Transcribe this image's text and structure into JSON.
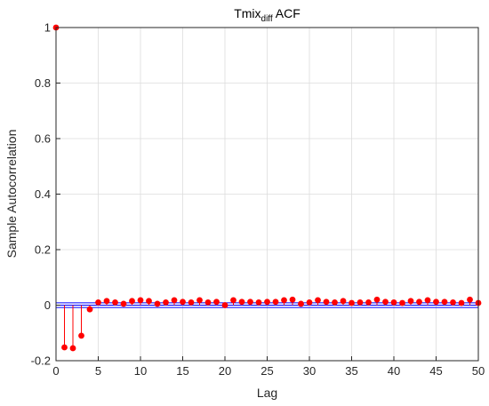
{
  "chart_data": {
    "type": "stem",
    "title": {
      "base": "Tmix",
      "subscript": "diff",
      "suffix": " ACF"
    },
    "xlabel": "Lag",
    "ylabel": "Sample Autocorrelation",
    "xlim": [
      0,
      50
    ],
    "ylim": [
      -0.2,
      1
    ],
    "xticks": [
      "0",
      "5",
      "10",
      "15",
      "20",
      "25",
      "30",
      "35",
      "40",
      "45",
      "50"
    ],
    "yticks": [
      "-0.2",
      "0",
      "0.2",
      "0.4",
      "0.6",
      "0.8",
      "1"
    ],
    "grid": true,
    "confidence_bound": 0.0085,
    "colors": {
      "stem": "#ff0000",
      "bound": "#0000ff",
      "axis": "#262626",
      "grid": "#dcdcdc"
    },
    "lags": [
      0,
      1,
      2,
      3,
      4,
      5,
      6,
      7,
      8,
      9,
      10,
      11,
      12,
      13,
      14,
      15,
      16,
      17,
      18,
      19,
      20,
      21,
      22,
      23,
      24,
      25,
      26,
      27,
      28,
      29,
      30,
      31,
      32,
      33,
      34,
      35,
      36,
      37,
      38,
      39,
      40,
      41,
      42,
      43,
      44,
      45,
      46,
      47,
      48,
      49,
      50
    ],
    "values": [
      1,
      -0.152,
      -0.155,
      -0.11,
      -0.015,
      0.01,
      0.015,
      0.01,
      0.005,
      0.015,
      0.018,
      0.015,
      0.005,
      0.01,
      0.018,
      0.012,
      0.01,
      0.018,
      0.01,
      0.012,
      0.0,
      0.018,
      0.012,
      0.012,
      0.01,
      0.012,
      0.012,
      0.018,
      0.02,
      0.005,
      0.01,
      0.018,
      0.012,
      0.01,
      0.015,
      0.008,
      0.01,
      0.01,
      0.02,
      0.012,
      0.01,
      0.008,
      0.015,
      0.012,
      0.018,
      0.012,
      0.012,
      0.01,
      0.008,
      0.02,
      0.008
    ]
  }
}
